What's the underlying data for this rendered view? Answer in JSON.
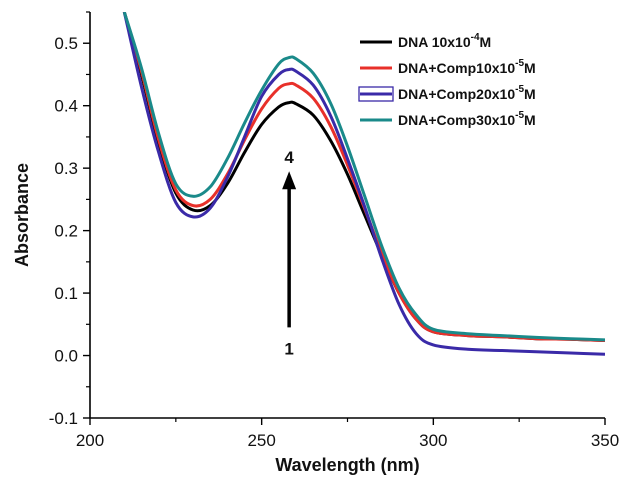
{
  "chart_data": {
    "type": "line",
    "title": "",
    "xlabel": "Wavelength (nm)",
    "ylabel": "Absorbance",
    "xlim": [
      200,
      350
    ],
    "ylim": [
      -0.1,
      0.55
    ],
    "xticks": [
      200,
      250,
      300,
      350
    ],
    "yticks": [
      -0.1,
      0.0,
      0.1,
      0.2,
      0.3,
      0.4,
      0.5
    ],
    "ytick_labels": [
      "-0.1",
      "0.0",
      "0.1",
      "0.2",
      "0.3",
      "0.4",
      "0.5"
    ],
    "grid": false,
    "legend_position": "top-right",
    "series": [
      {
        "name": "DNA 10x10",
        "name_sup": "-4",
        "name_suffix": "M",
        "color": "#000000",
        "x": [
          210,
          215,
          220,
          225,
          230,
          235,
          240,
          245,
          250,
          255,
          258,
          260,
          265,
          270,
          275,
          280,
          285,
          290,
          295,
          300,
          310,
          320,
          330,
          340,
          350
        ],
        "y": [
          0.55,
          0.45,
          0.34,
          0.26,
          0.233,
          0.24,
          0.275,
          0.325,
          0.37,
          0.398,
          0.405,
          0.403,
          0.385,
          0.345,
          0.29,
          0.225,
          0.16,
          0.1,
          0.058,
          0.038,
          0.032,
          0.03,
          0.027,
          0.026,
          0.024
        ]
      },
      {
        "name": "DNA+Comp10x10",
        "name_sup": "-5",
        "name_suffix": "M",
        "color": "#e8302a",
        "x": [
          210,
          215,
          220,
          225,
          230,
          235,
          240,
          245,
          250,
          255,
          258,
          260,
          265,
          270,
          275,
          280,
          285,
          290,
          295,
          300,
          310,
          320,
          330,
          340,
          350
        ],
        "y": [
          0.55,
          0.455,
          0.345,
          0.265,
          0.24,
          0.25,
          0.29,
          0.345,
          0.395,
          0.428,
          0.435,
          0.433,
          0.412,
          0.368,
          0.305,
          0.235,
          0.163,
          0.1,
          0.058,
          0.038,
          0.032,
          0.03,
          0.027,
          0.026,
          0.024
        ]
      },
      {
        "name": "DNA+Comp20x10",
        "name_sup": "-5",
        "name_suffix": "M",
        "color": "#3a2aa8",
        "x": [
          210,
          215,
          220,
          225,
          230,
          235,
          240,
          245,
          250,
          255,
          258,
          260,
          265,
          270,
          275,
          280,
          285,
          290,
          295,
          300,
          310,
          320,
          330,
          340,
          350
        ],
        "y": [
          0.55,
          0.43,
          0.325,
          0.245,
          0.222,
          0.236,
          0.285,
          0.35,
          0.415,
          0.45,
          0.458,
          0.455,
          0.433,
          0.385,
          0.315,
          0.238,
          0.155,
          0.082,
          0.035,
          0.017,
          0.01,
          0.008,
          0.006,
          0.004,
          0.002
        ]
      },
      {
        "name": "DNA+Comp30x10",
        "name_sup": "-5",
        "name_suffix": "M",
        "color": "#1a8a8a",
        "x": [
          210,
          215,
          220,
          225,
          230,
          235,
          240,
          245,
          250,
          255,
          258,
          260,
          265,
          270,
          275,
          280,
          285,
          290,
          295,
          300,
          310,
          320,
          330,
          340,
          350
        ],
        "y": [
          0.55,
          0.46,
          0.355,
          0.275,
          0.255,
          0.27,
          0.315,
          0.372,
          0.425,
          0.467,
          0.477,
          0.475,
          0.452,
          0.405,
          0.335,
          0.255,
          0.175,
          0.108,
          0.065,
          0.042,
          0.035,
          0.032,
          0.029,
          0.027,
          0.025
        ]
      }
    ],
    "annotations": [
      {
        "text": "4",
        "x": 258,
        "y": 0.318
      },
      {
        "text": "1",
        "x": 258,
        "y": 0.011
      }
    ],
    "arrow": {
      "x": 258,
      "y_from": 0.045,
      "y_to": 0.295
    }
  }
}
